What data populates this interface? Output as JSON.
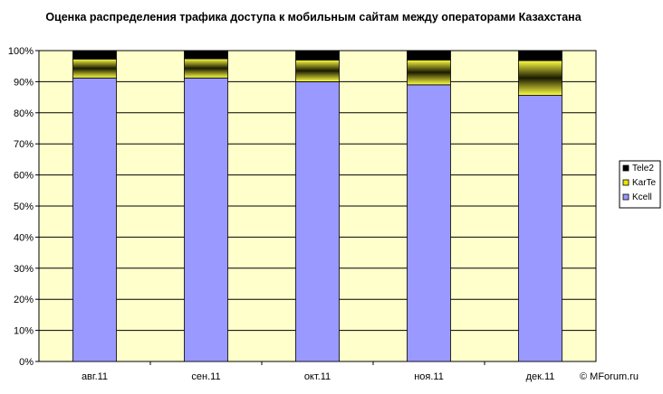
{
  "chart_data": {
    "type": "bar",
    "stacked": true,
    "percent_stacked": true,
    "title": "Оценка распределения трафика доступа к мобильным сайтам между операторами Казахстана",
    "categories": [
      "авг.11",
      "сен.11",
      "окт.11",
      "ноя.11",
      "дек.11"
    ],
    "series": [
      {
        "name": "Kcell",
        "color": "#9999ff",
        "values": [
          91.2,
          91.2,
          90.0,
          89.0,
          85.6
        ]
      },
      {
        "name": "KarTe",
        "color": "#e8e800",
        "values": [
          6.1,
          6.2,
          7.0,
          8.0,
          11.2
        ]
      },
      {
        "name": "Tele2",
        "color": "#000000",
        "values": [
          2.7,
          2.6,
          3.0,
          3.0,
          3.2
        ]
      }
    ],
    "y_ticks": [
      "0%",
      "10%",
      "20%",
      "30%",
      "40%",
      "50%",
      "60%",
      "70%",
      "80%",
      "90%",
      "100%"
    ],
    "ylim": [
      0,
      100
    ],
    "grid": true,
    "plot_background": "#ffffcc",
    "legend_position": "right",
    "legend_order": [
      "Tele2",
      "KarTe",
      "Kcell"
    ]
  },
  "credit": "© MForum.ru"
}
